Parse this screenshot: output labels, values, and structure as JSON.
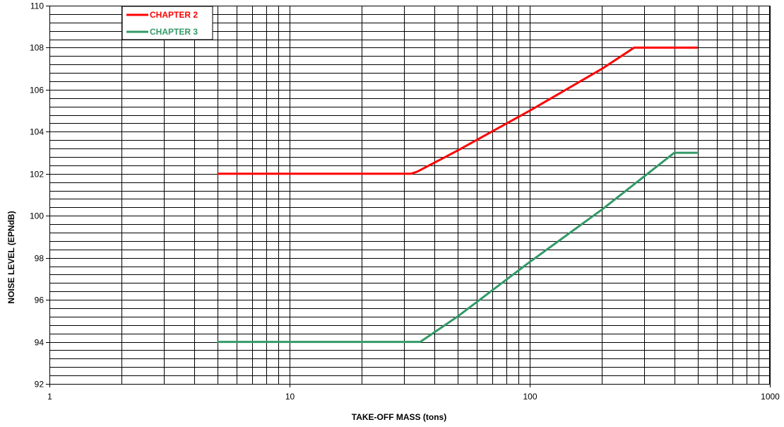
{
  "chart_data": {
    "type": "line",
    "xlabel": "TAKE-OFF MASS (tons)",
    "ylabel": "NOISE LEVEL (EPNdB)",
    "x_scale": "log",
    "xlim": [
      1,
      1000
    ],
    "ylim": [
      92,
      110
    ],
    "x_ticks": [
      1,
      10,
      100,
      1000
    ],
    "y_ticks": [
      92,
      94,
      96,
      98,
      100,
      102,
      104,
      106,
      108,
      110
    ],
    "y_minor_step": 0.4,
    "grid": true,
    "legend_position": "top-left",
    "series": [
      {
        "name": "CHAPTER 2",
        "color": "#ff0000",
        "x": [
          5,
          32,
          34,
          50,
          100,
          200,
          272,
          500
        ],
        "y": [
          102,
          102,
          102.1,
          103.1,
          105.0,
          107.0,
          108,
          108
        ]
      },
      {
        "name": "CHAPTER 3",
        "color": "#339966",
        "x": [
          5,
          32,
          35,
          50,
          100,
          200,
          400,
          500
        ],
        "y": [
          94,
          94,
          94.0,
          95.2,
          97.8,
          100.3,
          103,
          103
        ]
      }
    ]
  }
}
